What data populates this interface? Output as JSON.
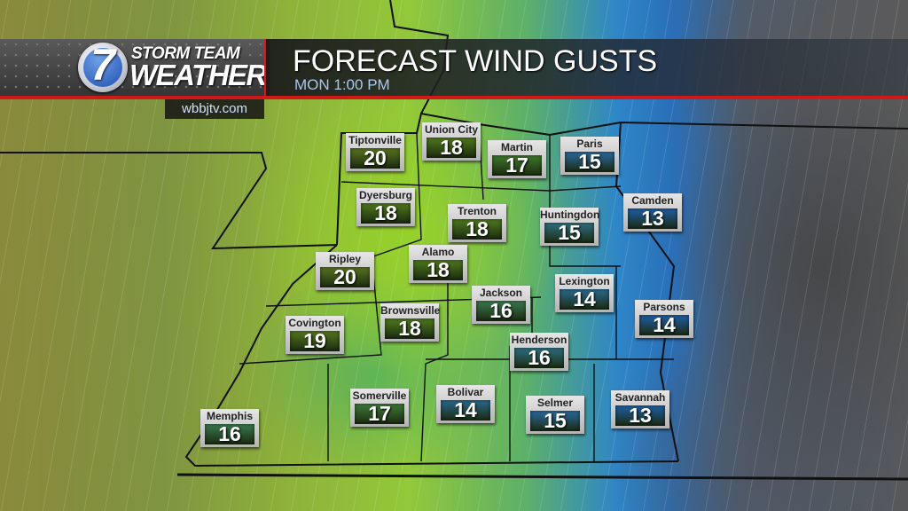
{
  "header": {
    "logo": {
      "line1": "STORM TEAM",
      "line2": "WEATHER",
      "number": "7"
    },
    "site": "wbbjtv.com",
    "title": "FORECAST WIND GUSTS",
    "subtitle": "MON 1:00 PM"
  },
  "colors": {
    "accent_red": "#d01818",
    "green_box": "#4f7a1c",
    "teal_box": "#2f7a70",
    "blue_box": "#1f5fa8"
  },
  "cities": [
    {
      "name": "Tiptonville",
      "value": "20",
      "color": "#5a7420"
    },
    {
      "name": "Union City",
      "value": "18",
      "color": "#4f7a1c"
    },
    {
      "name": "Martin",
      "value": "17",
      "color": "#3f7a2a"
    },
    {
      "name": "Paris",
      "value": "15",
      "color": "#2a6aa0"
    },
    {
      "name": "Camden",
      "value": "13",
      "color": "#1f5fa8"
    },
    {
      "name": "Dyersburg",
      "value": "18",
      "color": "#4f7a1c"
    },
    {
      "name": "Trenton",
      "value": "18",
      "color": "#4f7a1c"
    },
    {
      "name": "Huntingdon",
      "value": "15",
      "color": "#2f7080"
    },
    {
      "name": "Ripley",
      "value": "20",
      "color": "#5a7420"
    },
    {
      "name": "Alamo",
      "value": "18",
      "color": "#4f7a1c"
    },
    {
      "name": "Jackson",
      "value": "16",
      "color": "#3a7a50"
    },
    {
      "name": "Lexington",
      "value": "14",
      "color": "#2a6a90"
    },
    {
      "name": "Parsons",
      "value": "14",
      "color": "#1f5fa8"
    },
    {
      "name": "Covington",
      "value": "19",
      "color": "#55781e"
    },
    {
      "name": "Brownsville",
      "value": "18",
      "color": "#4f7a1c"
    },
    {
      "name": "Henderson",
      "value": "16",
      "color": "#2f7080"
    },
    {
      "name": "Memphis",
      "value": "16",
      "color": "#3a7a50"
    },
    {
      "name": "Somerville",
      "value": "17",
      "color": "#3f7a3a"
    },
    {
      "name": "Bolivar",
      "value": "14",
      "color": "#2a6a90"
    },
    {
      "name": "Selmer",
      "value": "15",
      "color": "#2a6aa0"
    },
    {
      "name": "Savannah",
      "value": "13",
      "color": "#1f5fa8"
    }
  ]
}
